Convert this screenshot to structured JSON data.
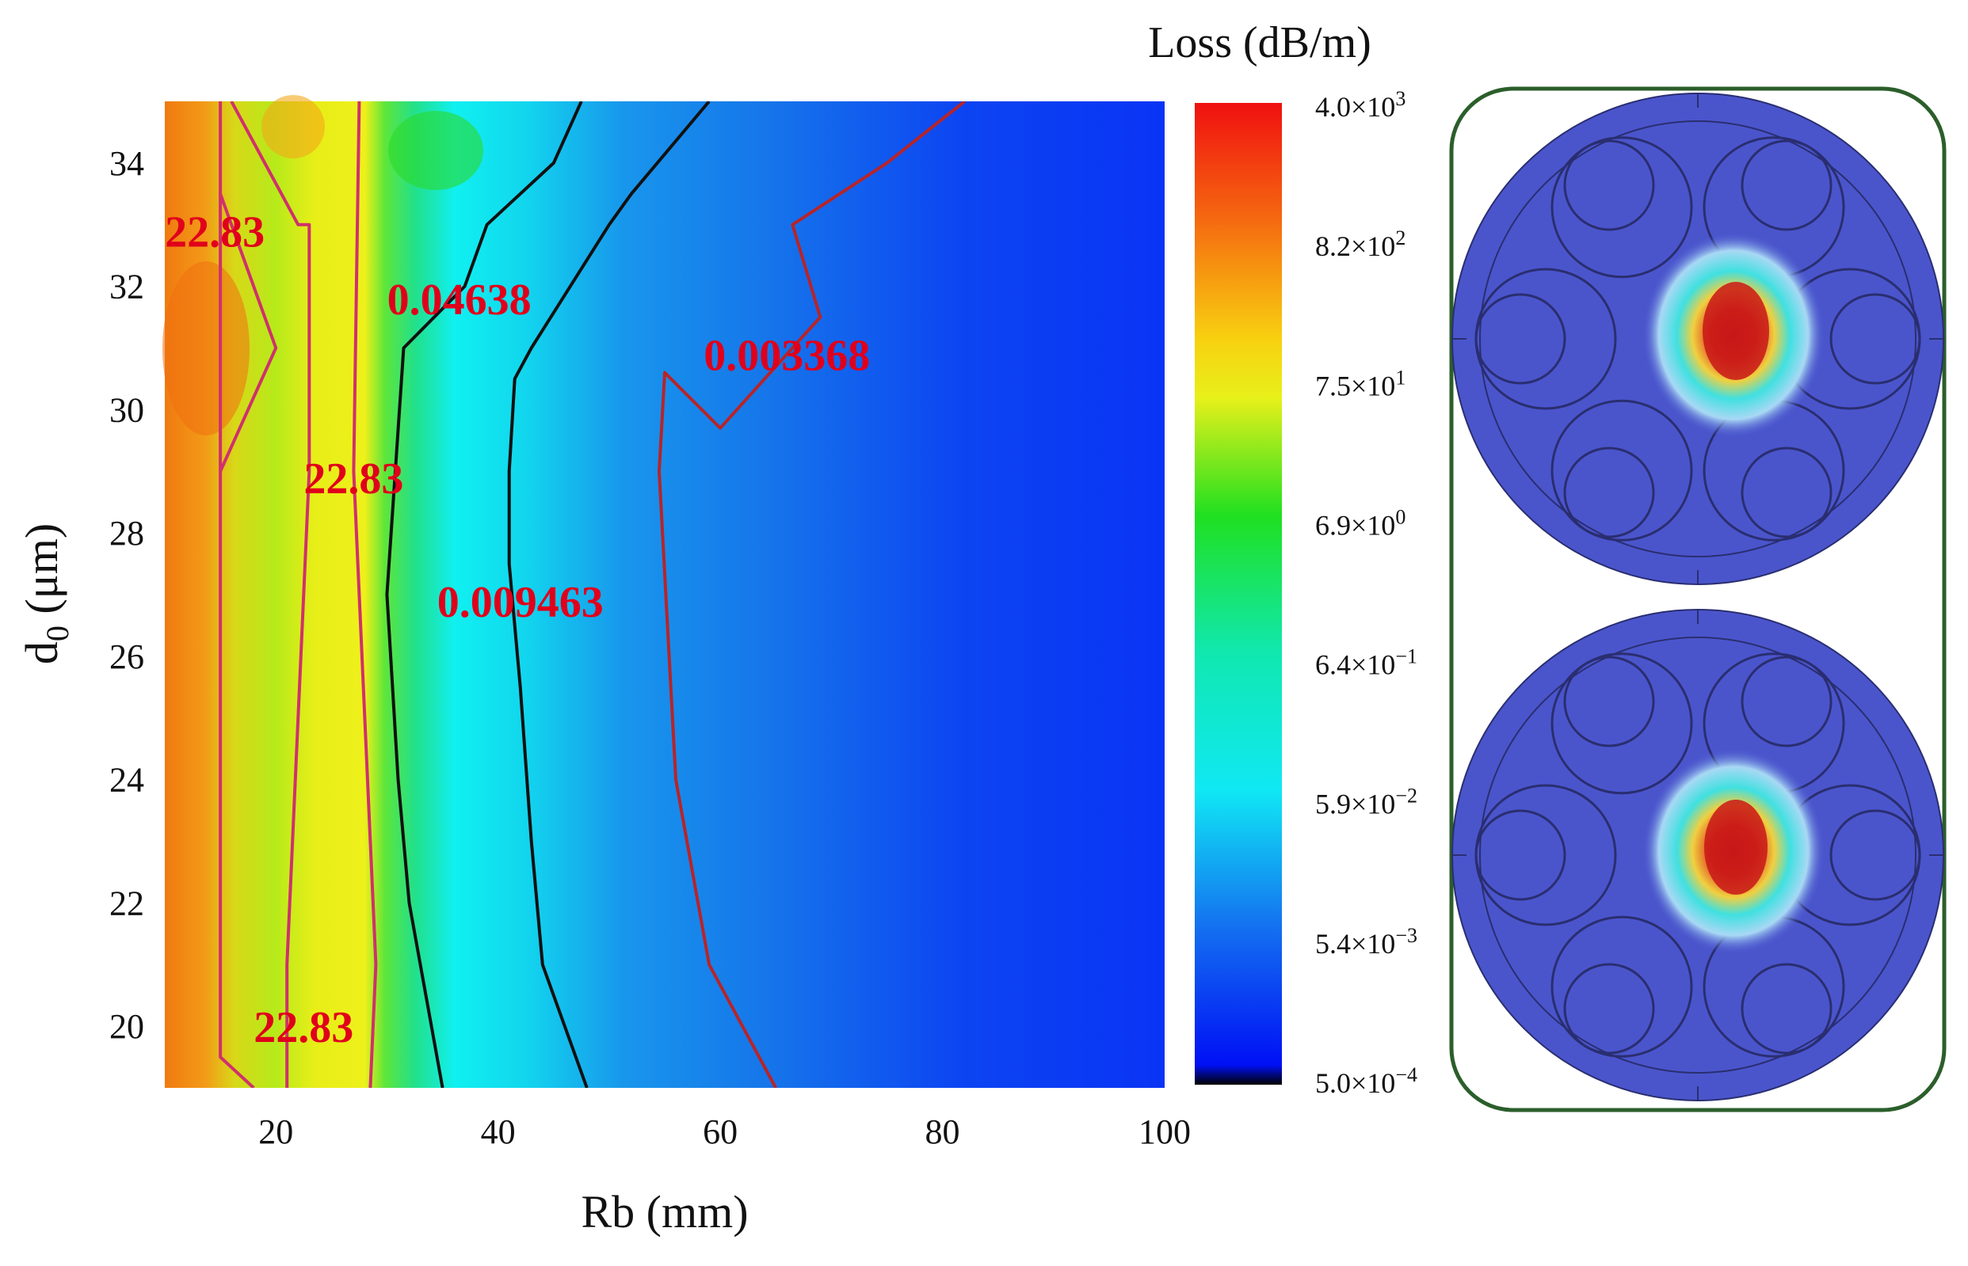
{
  "chart_data": {
    "type": "heatmap",
    "subtype": "filled contour",
    "xlabel": "Rb (mm)",
    "ylabel_main": "d",
    "ylabel_sub": "0",
    "ylabel_unit": " (μm)",
    "xlim": [
      10,
      100
    ],
    "ylim": [
      19,
      35
    ],
    "xticks": [
      20,
      40,
      60,
      80,
      100
    ],
    "yticks": [
      20,
      22,
      24,
      26,
      28,
      30,
      32,
      34
    ],
    "colorbar": {
      "title": "Loss (dB/m)",
      "scale": "log",
      "range": [
        0.0005,
        4000
      ],
      "ticks": [
        {
          "mantissa": "4.0×10",
          "exp": "3"
        },
        {
          "mantissa": "8.2×10",
          "exp": "2"
        },
        {
          "mantissa": "7.5×10",
          "exp": "1"
        },
        {
          "mantissa": "6.9×10",
          "exp": "0"
        },
        {
          "mantissa": "6.4×10",
          "exp": "−1"
        },
        {
          "mantissa": "5.9×10",
          "exp": "−2"
        },
        {
          "mantissa": "5.4×10",
          "exp": "−3"
        },
        {
          "mantissa": "5.0×10",
          "exp": "−4"
        }
      ]
    },
    "contours": [
      {
        "level": 22.83,
        "color": "#d0306c",
        "lines": [
          [
            [
              15,
              35
            ],
            [
              15,
              29
            ],
            [
              20,
              31
            ],
            [
              15,
              33.5
            ],
            [
              15,
              19.5
            ],
            [
              18,
              19
            ]
          ],
          [
            [
              16,
              35
            ],
            [
              22,
              33
            ],
            [
              23,
              33
            ],
            [
              23,
              29
            ],
            [
              21,
              21
            ],
            [
              21,
              19
            ]
          ],
          [
            [
              27.5,
              35
            ],
            [
              27,
              29
            ],
            [
              29,
              21
            ],
            [
              28.5,
              19
            ]
          ]
        ],
        "labels": [
          {
            "text": "22.83",
            "x": 14.5,
            "y": 32.9
          },
          {
            "text": "22.83",
            "x": 27,
            "y": 28.9
          },
          {
            "text": "22.83",
            "x": 22.5,
            "y": 20.0
          }
        ]
      },
      {
        "level": 0.04638,
        "color": "#111111",
        "lines": [
          [
            [
              47.5,
              35
            ],
            [
              45,
              34
            ],
            [
              39,
              33
            ],
            [
              37,
              32
            ],
            [
              31.5,
              31
            ],
            [
              30,
              27
            ],
            [
              31,
              24
            ],
            [
              32,
              22
            ],
            [
              35,
              19
            ]
          ]
        ],
        "labels": [
          {
            "text": "0.04638",
            "x": 36.5,
            "y": 31.8
          }
        ]
      },
      {
        "level": 0.009463,
        "color": "#111111",
        "lines": [
          [
            [
              59,
              35
            ],
            [
              52,
              33.5
            ],
            [
              50,
              33
            ],
            [
              43,
              31
            ],
            [
              41.5,
              30.5
            ],
            [
              41,
              29
            ],
            [
              41,
              27.5
            ],
            [
              42,
              25.5
            ],
            [
              43,
              23
            ],
            [
              44,
              21
            ],
            [
              48,
              19
            ]
          ]
        ],
        "labels": [
          {
            "text": "0.009463",
            "x": 42,
            "y": 26.9
          }
        ]
      },
      {
        "level": 0.003368,
        "color": "#b82428",
        "lines": [
          [
            [
              82,
              35
            ],
            [
              75,
              34
            ],
            [
              66.5,
              33
            ],
            [
              69,
              31.5
            ],
            [
              60,
              29.7
            ],
            [
              55,
              30.6
            ],
            [
              54.5,
              29
            ],
            [
              56,
              24
            ],
            [
              59,
              21
            ],
            [
              65,
              19
            ]
          ]
        ],
        "labels": [
          {
            "text": "0.003368",
            "x": 66,
            "y": 30.9
          }
        ]
      }
    ]
  },
  "inset": {
    "panels": [
      "mode-field-top",
      "mode-field-bottom"
    ],
    "frame_color": "#2b5e2b",
    "cladding_color": "#4a55cc",
    "field_peak_color": "#cc1e1e"
  }
}
